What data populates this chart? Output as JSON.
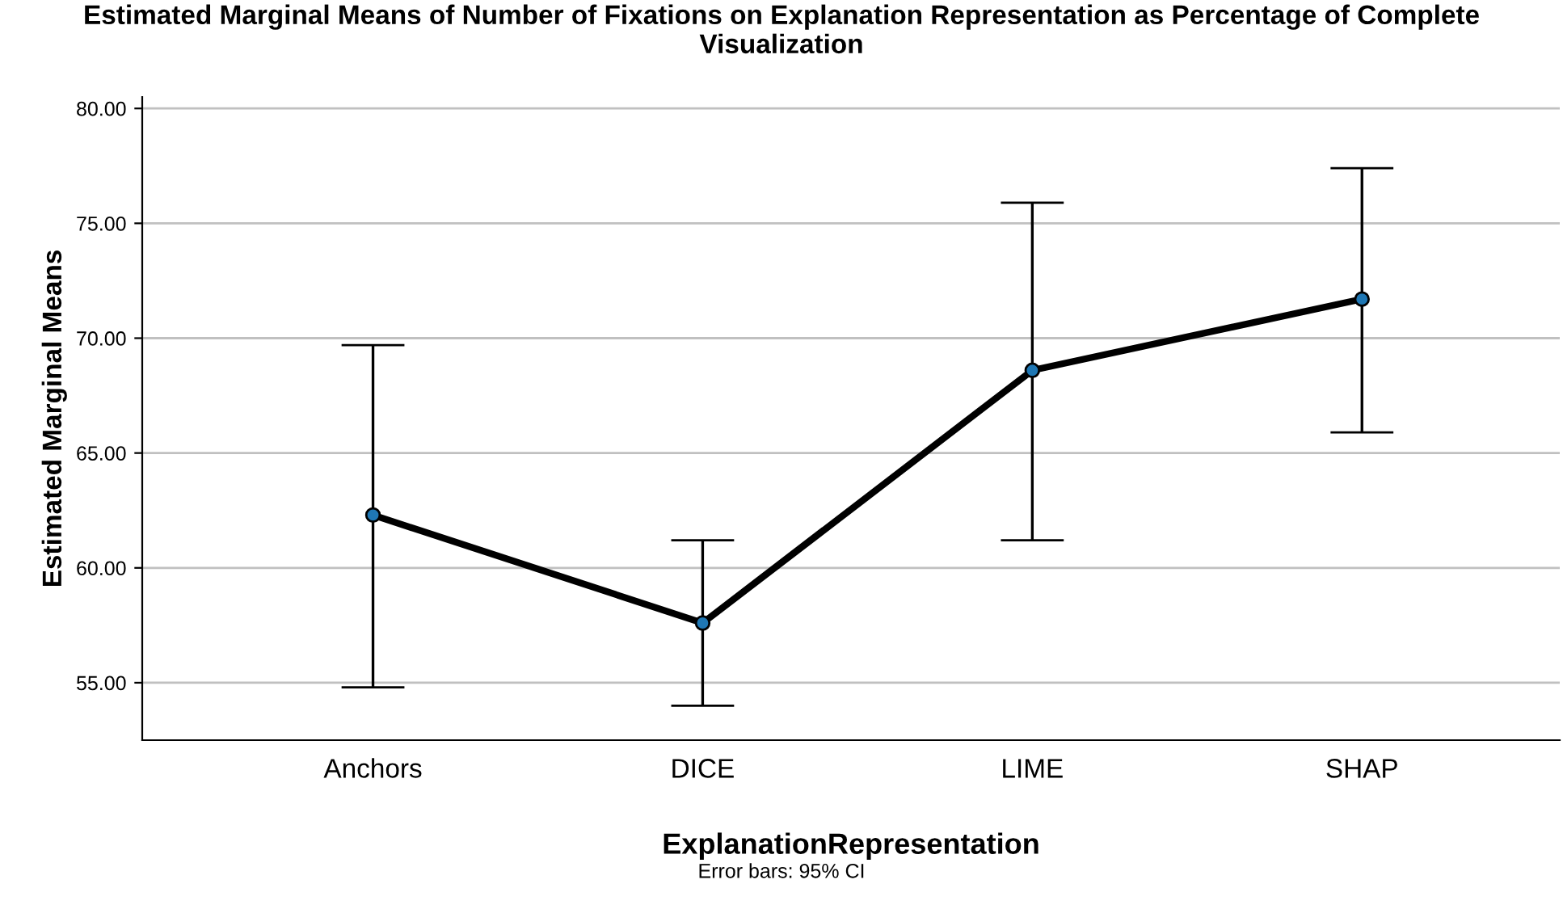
{
  "chart_data": {
    "type": "line",
    "title": "Estimated Marginal Means of Number of Fixations on Explanation Representation as Percentage of Complete Visualization",
    "xlabel": "ExplanationRepresentation",
    "ylabel": "Estimated Marginal Means",
    "categories": [
      "Anchors",
      "DICE",
      "LIME",
      "SHAP"
    ],
    "series": [
      {
        "color": "#000000",
        "values": [
          62.3,
          57.6,
          68.6,
          71.7
        ],
        "errors": [
          [
            54.8,
            69.7
          ],
          [
            54.0,
            61.2
          ],
          [
            61.2,
            75.9
          ],
          [
            65.9,
            77.4
          ]
        ]
      }
    ],
    "ylim": [
      52.5,
      80.5
    ],
    "yticks": [
      {
        "value": 55,
        "label": "55.00"
      },
      {
        "value": 60,
        "label": "60.00"
      },
      {
        "value": 65,
        "label": "65.00"
      },
      {
        "value": 70,
        "label": "70.00"
      },
      {
        "value": 75,
        "label": "75.00"
      },
      {
        "value": 80,
        "label": "80.00"
      }
    ],
    "grid": "y",
    "marker": "circle",
    "line_style": "solid",
    "annotations": [
      "Error bars: 95% CI"
    ]
  }
}
